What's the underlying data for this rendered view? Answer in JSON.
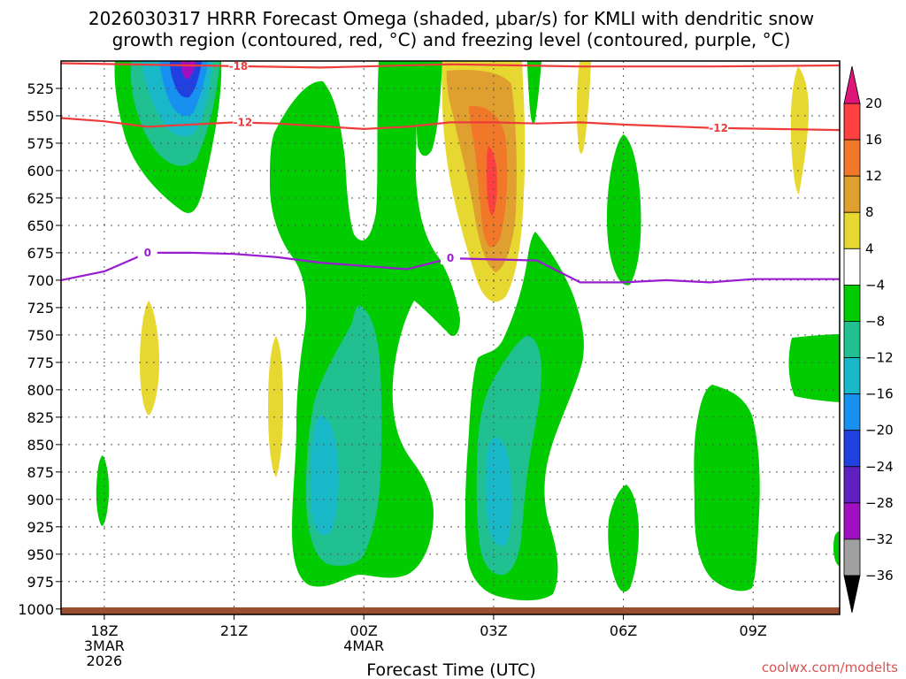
{
  "chart_data": {
    "type": "heatmap",
    "title_line1": "2026030317 HRRR Forecast Omega (shaded, μbar/s) for KMLI with dendritic snow",
    "title_line2": "growth region (contoured, red, °C) and freezing level (contoured, purple, °C)",
    "xlabel": "Forecast Time (UTC)",
    "ylabel": "",
    "credit": "coolwx.com/modelts",
    "x_ticks": [
      {
        "label": "18Z",
        "sub1": "3MAR",
        "sub2": "2026",
        "hour": 1
      },
      {
        "label": "21Z",
        "sub1": "",
        "sub2": "",
        "hour": 4
      },
      {
        "label": "00Z",
        "sub1": "4MAR",
        "sub2": "",
        "hour": 7
      },
      {
        "label": "03Z",
        "sub1": "",
        "sub2": "",
        "hour": 10
      },
      {
        "label": "06Z",
        "sub1": "",
        "sub2": "",
        "hour": 13
      },
      {
        "label": "09Z",
        "sub1": "",
        "sub2": "",
        "hour": 16
      }
    ],
    "x_range_hours": [
      0,
      18
    ],
    "y_levels_hPa": [
      "525",
      "550",
      "575",
      "600",
      "625",
      "650",
      "675",
      "700",
      "725",
      "750",
      "775",
      "800",
      "825",
      "850",
      "875",
      "900",
      "925",
      "950",
      "975",
      "1000"
    ],
    "y_range_hPa": [
      500,
      1005
    ],
    "colorbar": {
      "labels": [
        "20",
        "16",
        "12",
        "8",
        "4",
        "−4",
        "−8",
        "−12",
        "−16",
        "−20",
        "−24",
        "−28",
        "−32",
        "−36"
      ],
      "bins": [
        {
          "range": "16 to 20",
          "color": "#ff4040"
        },
        {
          "range": "12 to 16",
          "color": "#f07828"
        },
        {
          "range": "8 to 12",
          "color": "#e0a030"
        },
        {
          "range": "4 to 8",
          "color": "#e6d830"
        },
        {
          "range": "-4 to 4",
          "color": "#ffffff"
        },
        {
          "range": "-8 to -4",
          "color": "#00cc00"
        },
        {
          "range": "-12 to -8",
          "color": "#20c090"
        },
        {
          "range": "-16 to -12",
          "color": "#18b8c8"
        },
        {
          "range": "-20 to -16",
          "color": "#1890f0"
        },
        {
          "range": "-24 to -20",
          "color": "#2040e0"
        },
        {
          "range": "-28 to -24",
          "color": "#6020c0"
        },
        {
          "range": "-32 to -28",
          "color": "#a010c0"
        },
        {
          "range": "-36 to -32",
          "color": "#a0a0a0"
        }
      ],
      "top_arrow_color": "#e0157a",
      "bottom_arrow_color": "#000000"
    },
    "contours": {
      "dgz_minus18": {
        "label": "-18",
        "color": "#ee3b3b",
        "points": [
          [
            0,
            502
          ],
          [
            3,
            504
          ],
          [
            6,
            506
          ],
          [
            9,
            503
          ],
          [
            12,
            505
          ],
          [
            15,
            505
          ],
          [
            18,
            504
          ]
        ]
      },
      "dgz_minus12": {
        "label": "-12",
        "color": "#ee3b3b",
        "label2": "-12",
        "points": [
          [
            0,
            552
          ],
          [
            1,
            555
          ],
          [
            2,
            560
          ],
          [
            3,
            558
          ],
          [
            4,
            556
          ],
          [
            5,
            557
          ],
          [
            7,
            562
          ],
          [
            8,
            560
          ],
          [
            9,
            556
          ],
          [
            10,
            556
          ],
          [
            11,
            557
          ],
          [
            12,
            556
          ],
          [
            13,
            558
          ],
          [
            15,
            561
          ],
          [
            18,
            563
          ]
        ]
      },
      "freezing_level": {
        "label": "0",
        "color": "#9a1bd0",
        "label2": "0",
        "points": [
          [
            0,
            700
          ],
          [
            1,
            692
          ],
          [
            2,
            675
          ],
          [
            3,
            675
          ],
          [
            4,
            676
          ],
          [
            5,
            679
          ],
          [
            6,
            684
          ],
          [
            7,
            687
          ],
          [
            8,
            690
          ],
          [
            9,
            680
          ],
          [
            10,
            681
          ],
          [
            11,
            682
          ],
          [
            12,
            702
          ],
          [
            13,
            702
          ],
          [
            14,
            700
          ],
          [
            15,
            702
          ],
          [
            16,
            699
          ],
          [
            18,
            699
          ]
        ]
      }
    },
    "surface_color": "#9a5030"
  }
}
